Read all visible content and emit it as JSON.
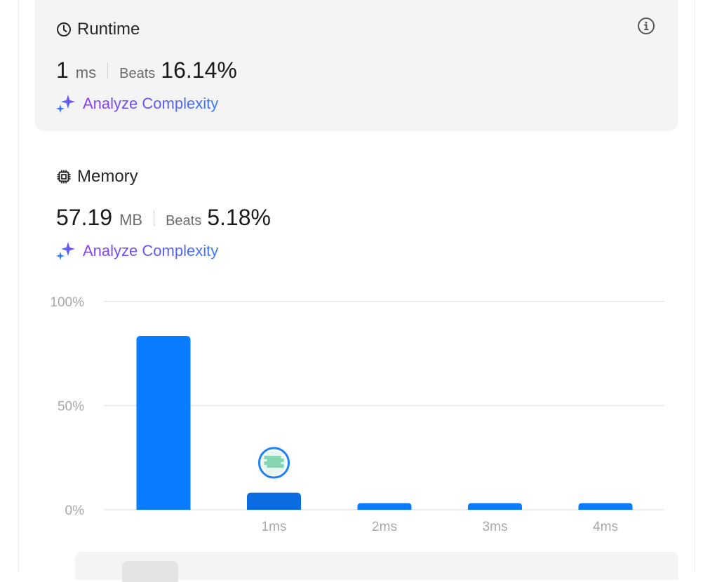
{
  "runtime": {
    "title": "Runtime",
    "value": "1",
    "unit": "ms",
    "beats_label": "Beats",
    "beats_value": "16.14%",
    "analyze_label": "Analyze Complexity"
  },
  "memory": {
    "title": "Memory",
    "value": "57.19",
    "unit": "MB",
    "beats_label": "Beats",
    "beats_value": "5.18%",
    "analyze_label": "Analyze Complexity"
  },
  "chart_data": {
    "type": "bar",
    "y_ticks": [
      "100%",
      "50%",
      "0%"
    ],
    "ylim": [
      0,
      100
    ],
    "categories": [
      "",
      "1ms",
      "2ms",
      "3ms",
      "4ms"
    ],
    "values": [
      83.5,
      8.2,
      3.2,
      3.2,
      3.2
    ],
    "highlight_index": 1,
    "colors": {
      "bar": "#0a7cff",
      "bar_highlight": "#0a6ce0",
      "grid": "#e6e6e6",
      "tick": "#a8a8a8"
    }
  },
  "icons": {
    "runtime": "clock-icon",
    "memory": "chip-icon",
    "info": "info-icon",
    "analyze": "sparkle-icon",
    "user": "avatar"
  }
}
